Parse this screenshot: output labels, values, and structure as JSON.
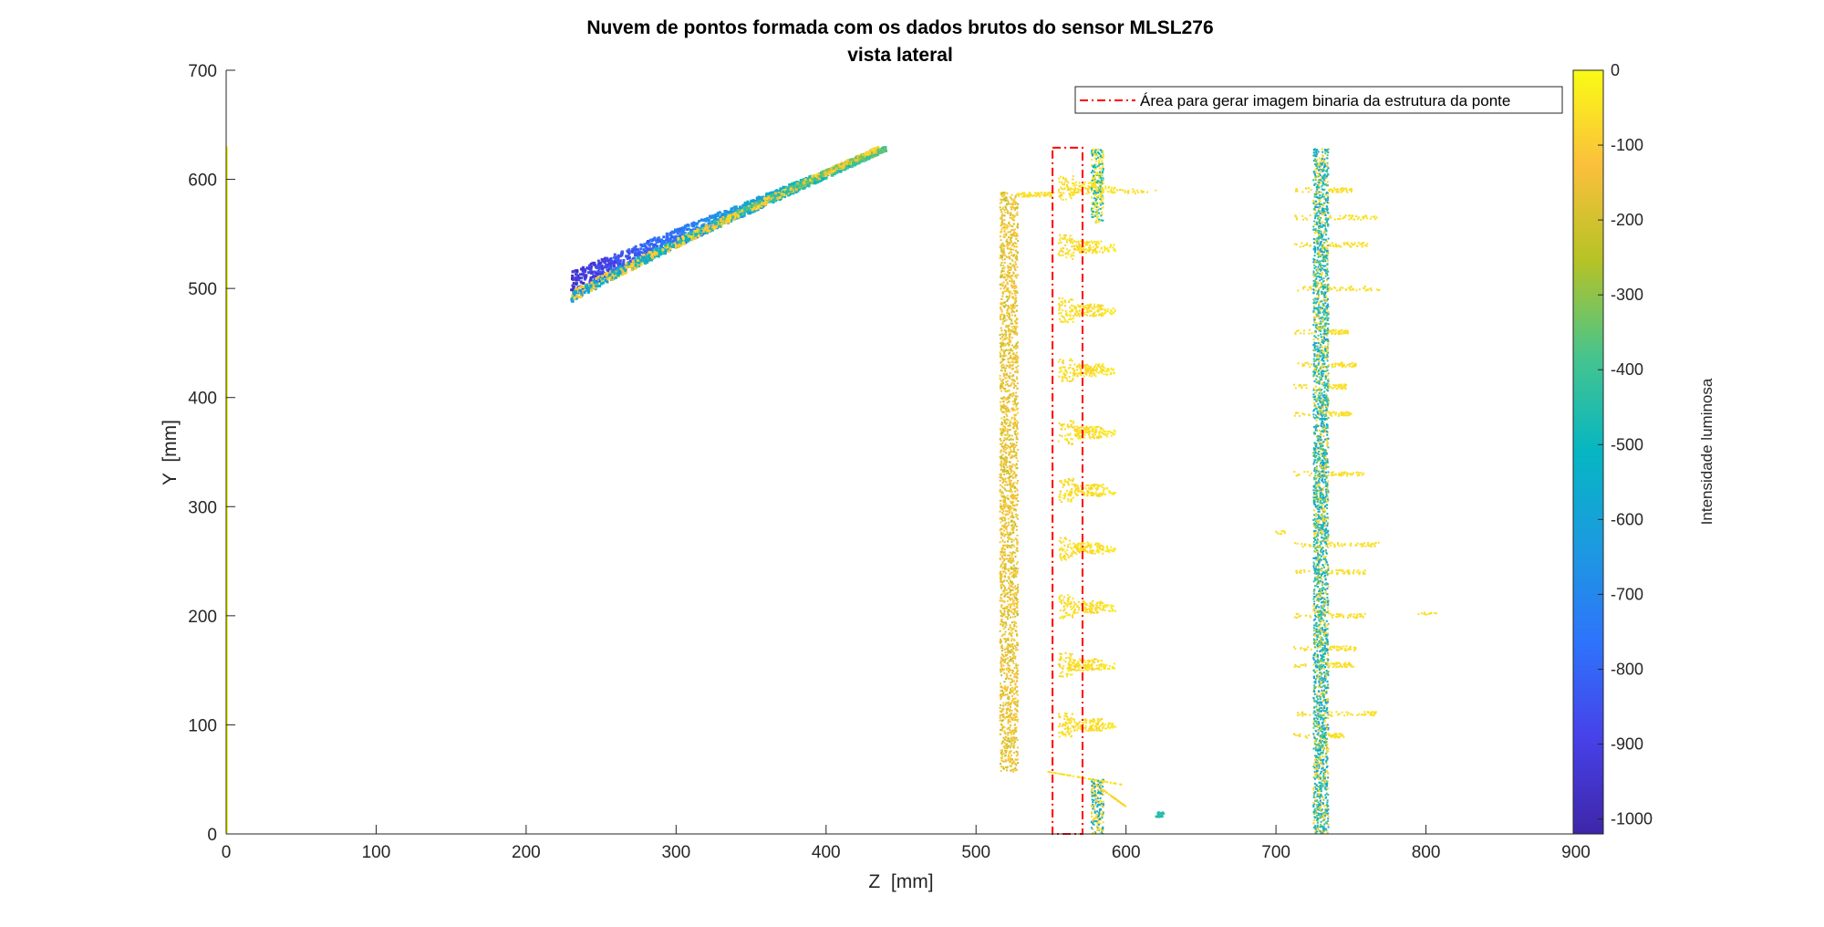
{
  "chart_data": {
    "type": "scatter",
    "title": [
      "Nuvem de pontos formada com os dados brutos do sensor MLSL276",
      "vista lateral"
    ],
    "xlabel": "Z  [mm]",
    "ylabel": "Y  [mm]",
    "xlim": [
      0,
      900
    ],
    "ylim": [
      0,
      700
    ],
    "xticks": [
      "0",
      "100",
      "200",
      "300",
      "400",
      "500",
      "600",
      "700",
      "800",
      "900"
    ],
    "yticks": [
      "0",
      "100",
      "200",
      "300",
      "400",
      "500",
      "600",
      "700"
    ],
    "grid": false,
    "colormap": "parula",
    "colorbar": {
      "label": "Intensidade luminosa",
      "range": [
        -1020,
        0
      ],
      "ticks": [
        "0",
        "-100",
        "-200",
        "-300",
        "-400",
        "-500",
        "-600",
        "-700",
        "-800",
        "-900",
        "-1000"
      ]
    },
    "legend": {
      "placement": "top-right",
      "entries": [
        {
          "label": "Área para gerar imagem binaria da estrutura da ponte",
          "color": "#ff0000",
          "style": "dash-dot"
        }
      ]
    },
    "annotations": [
      {
        "type": "rectangle",
        "z_range": [
          551,
          571
        ],
        "y_range": [
          0,
          629
        ],
        "color": "#ff0000",
        "style": "dash-dot"
      }
    ],
    "clusters": [
      {
        "name_hint": "left edge",
        "z": [
          0,
          0
        ],
        "y": [
          0,
          630
        ],
        "intensity": -5
      },
      {
        "name_hint": "upper diagonal band",
        "z": [
          230,
          440
        ],
        "y": [
          505,
          628
        ],
        "intensity": [
          -950,
          -350
        ]
      },
      {
        "name_hint": "lower diagonal band",
        "z": [
          230,
          435
        ],
        "y": [
          492,
          628
        ],
        "intensity": [
          -600,
          -150
        ]
      },
      {
        "name_hint": "vertical column ~520",
        "z": [
          516,
          528
        ],
        "y": [
          57,
          588
        ],
        "intensity": [
          -200,
          -80
        ]
      },
      {
        "name_hint": "periodic blobs ~560",
        "z": [
          555,
          585
        ],
        "y_centers": [
          100,
          155,
          208,
          262,
          315,
          368,
          425,
          480,
          538,
          592
        ],
        "intensity": [
          -100,
          -30
        ]
      },
      {
        "name_hint": "vertical ~580",
        "z": [
          575,
          585
        ],
        "y": [
          0,
          628
        ],
        "intensity": [
          -600,
          -100
        ]
      },
      {
        "name_hint": "vertical column ~730",
        "z": [
          725,
          735
        ],
        "y": [
          0,
          628
        ],
        "intensity": [
          -650,
          -300
        ]
      }
    ]
  }
}
